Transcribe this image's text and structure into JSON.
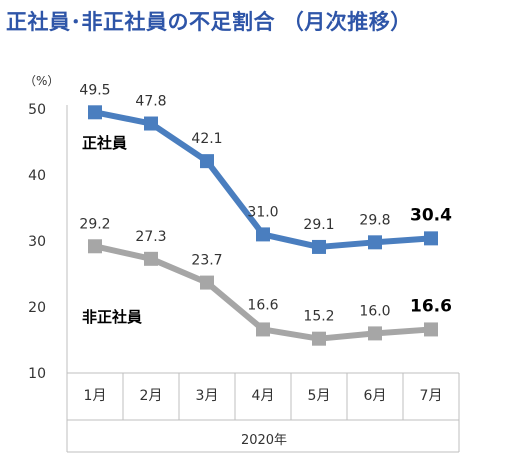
{
  "title": "正社員･非正社員の不足割合 （月次推移）",
  "colors": {
    "title": "#2E55A8",
    "regular": "#4A7EBF",
    "nonregular": "#A6A6A6"
  },
  "chart_data": {
    "type": "line",
    "categories": [
      "1月",
      "2月",
      "3月",
      "4月",
      "5月",
      "6月",
      "7月"
    ],
    "xlabel": "2020年",
    "unit": "（%）",
    "ylim": [
      10,
      50
    ],
    "yticks": [
      10,
      20,
      30,
      40,
      50
    ],
    "grid": false,
    "legend": "inline labels",
    "series": [
      {
        "name": "正社員",
        "values": [
          49.5,
          47.8,
          42.1,
          31.0,
          29.1,
          29.8,
          30.4
        ],
        "labels": [
          "49.5",
          "47.8",
          "42.1",
          "31.0",
          "29.1",
          "29.8",
          "30.4"
        ],
        "color": "#4A7EBF"
      },
      {
        "name": "非正社員",
        "values": [
          29.2,
          27.3,
          23.7,
          16.6,
          15.2,
          16.0,
          16.6
        ],
        "labels": [
          "29.2",
          "27.3",
          "23.7",
          "16.6",
          "15.2",
          "16.0",
          "16.6"
        ],
        "color": "#A6A6A6"
      }
    ]
  }
}
